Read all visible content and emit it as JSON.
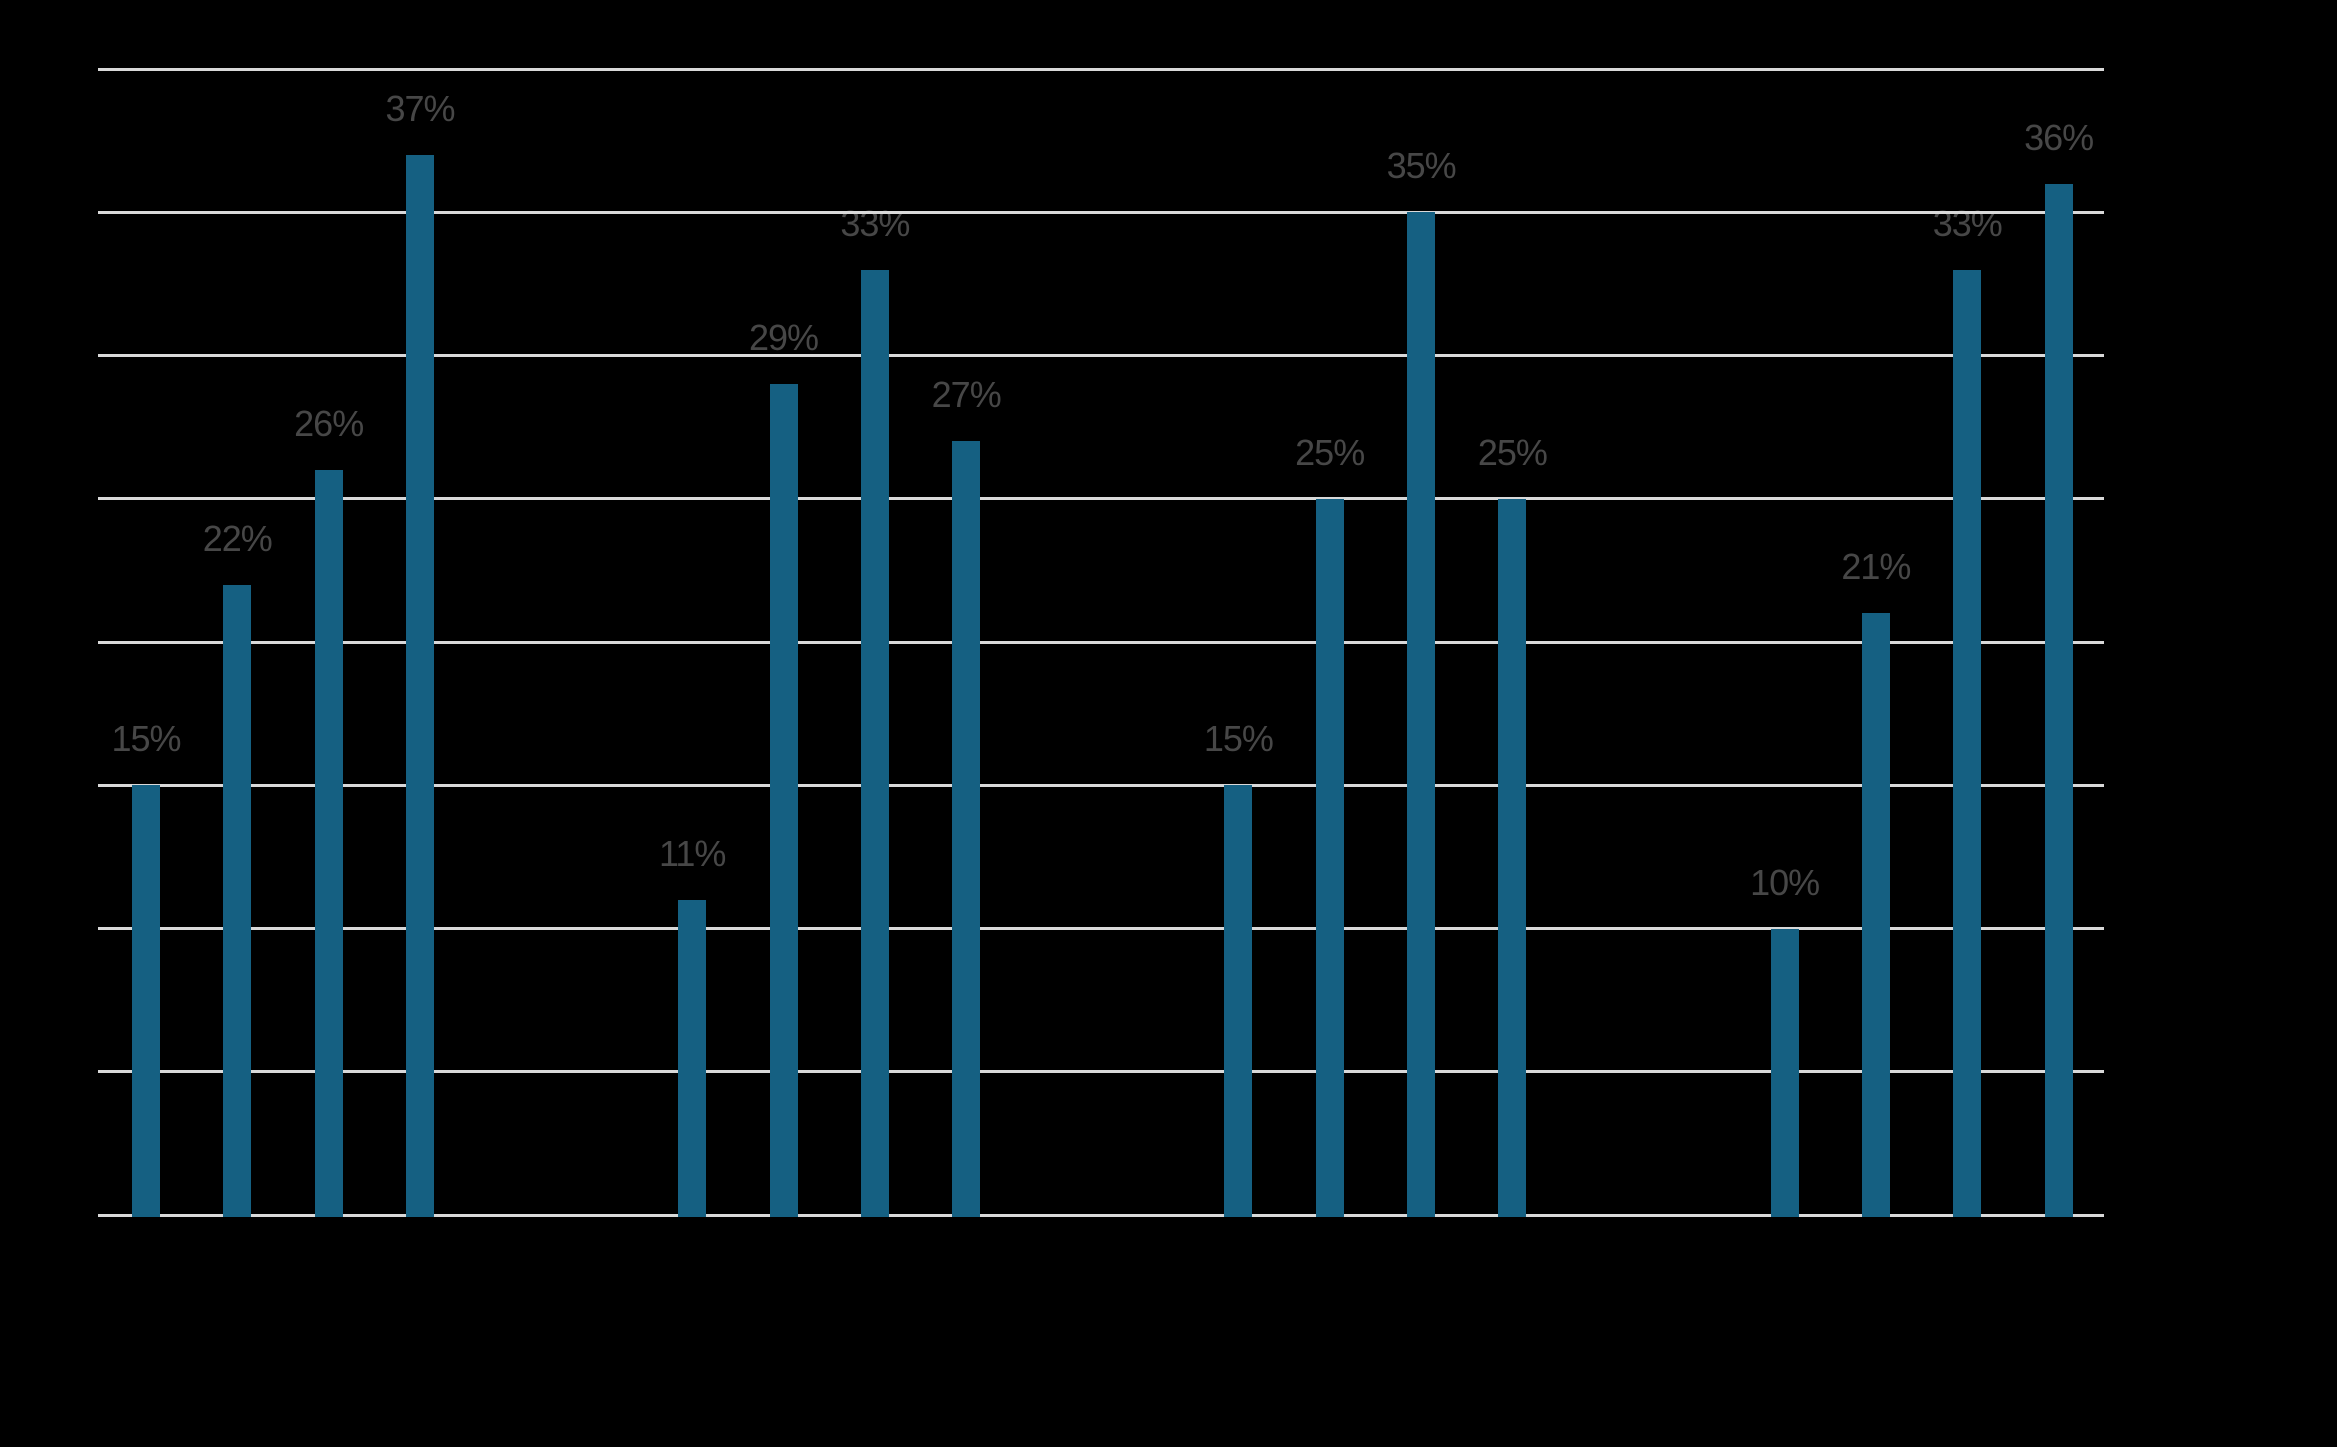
{
  "chart_data": {
    "type": "bar",
    "title": "",
    "xlabel": "",
    "ylabel": "",
    "categories": [
      "",
      "",
      "",
      ""
    ],
    "groups": [
      {
        "values": [
          15,
          22,
          26,
          37
        ],
        "labels": [
          "15%",
          "22%",
          "26%",
          "37%"
        ]
      },
      {
        "values": [
          11,
          29,
          33,
          27
        ],
        "labels": [
          "11%",
          "29%",
          "33%",
          "27%"
        ]
      },
      {
        "values": [
          15,
          25,
          35,
          25
        ],
        "labels": [
          "15%",
          "25%",
          "35%",
          "25%"
        ]
      },
      {
        "values": [
          10,
          21,
          33,
          36
        ],
        "labels": [
          "10%",
          "21%",
          "33%",
          "36%"
        ]
      }
    ],
    "value_label_format": "{value}%",
    "ylim": [
      0,
      40
    ],
    "gridline_step": 5,
    "grid": true,
    "legend": "none",
    "axis_tick_labels_visible": false
  },
  "colors": {
    "background": "#000000",
    "bar": "#156082",
    "gridline": "#d9d9d9",
    "value_label": "#474747"
  }
}
